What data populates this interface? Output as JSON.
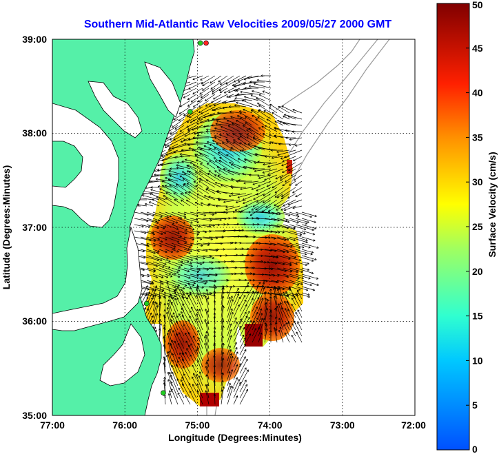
{
  "title": "Southern Mid-Atlantic Raw Velocities 2009/05/27 2000 GMT",
  "x_label": "Longitude (Degrees:Minutes)",
  "y_label": "Latitude (Degrees:Minutes)",
  "x_ticks": [
    "77:00",
    "76:00",
    "75:00",
    "74:00",
    "73:00",
    "72:00"
  ],
  "y_ticks": [
    "39:00",
    "38:00",
    "37:00",
    "36:00",
    "35:00"
  ],
  "colorbar": {
    "label": "Surface Velocity (cm/s)",
    "ticks": [
      "0",
      "5",
      "10",
      "15",
      "20",
      "25",
      "30",
      "35",
      "40",
      "45",
      "50"
    ],
    "min": 0,
    "max": 50
  },
  "colors": {
    "title": "#0000ff",
    "land": "#55f0a8",
    "land_outline": "#000000",
    "grid": "#000000",
    "bathymetry": "#999999",
    "station_green": "#22cc22",
    "station_red": "#ff2222"
  },
  "chart_data": {
    "type": "heatmap",
    "xlim": [
      -77,
      -72
    ],
    "ylim": [
      35,
      39
    ],
    "grid": true,
    "value_range": [
      0,
      50
    ],
    "units": "cm/s",
    "colormap": "jet",
    "stations": [
      {
        "lon": -74.88,
        "lat": 38.96,
        "status": "active-red"
      },
      {
        "lon": -74.96,
        "lat": 38.96,
        "status": "active-green"
      },
      {
        "lon": -75.1,
        "lat": 38.23,
        "status": "active-green"
      },
      {
        "lon": -75.7,
        "lat": 36.19,
        "status": "active-green"
      },
      {
        "lon": -75.47,
        "lat": 35.24,
        "status": "active-green"
      }
    ]
  }
}
